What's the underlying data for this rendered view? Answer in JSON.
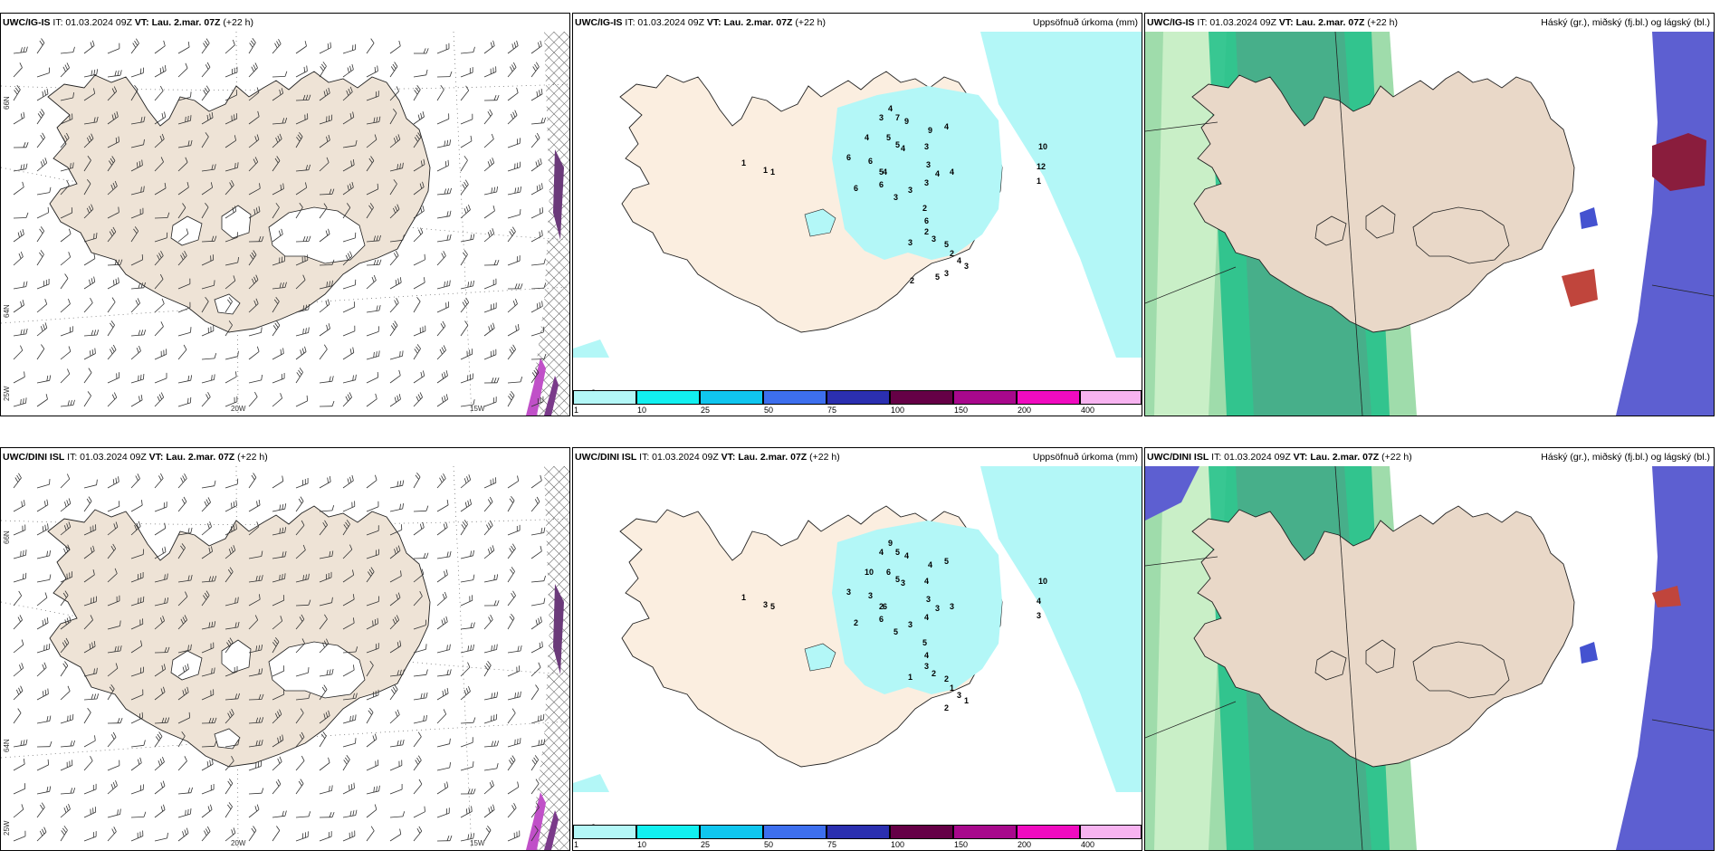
{
  "colors": {
    "land": "#eee3d6",
    "precip_light": "#b3f7f7",
    "model_green": "#1fbf88",
    "high_cloud_blue": "#5d5fd1"
  },
  "top": {
    "wind": {
      "model": "UWC/IG-IS",
      "it": "IT: 01.03.2024 09Z",
      "vt": "VT: Lau. 2.mar. 07Z",
      "lead": "(+22 h)"
    },
    "precip": {
      "model": "UWC/IG-IS",
      "it": "IT: 01.03.2024 09Z",
      "vt": "VT: Lau. 2.mar. 07Z",
      "lead": "(+22 h)",
      "title": "Uppsöfnuð úrkoma (mm)"
    },
    "cloud": {
      "model": "UWC/IG-IS",
      "it": "IT: 01.03.2024 09Z",
      "vt": "VT: Lau. 2.mar. 07Z",
      "lead": "(+22 h)",
      "title": "Háský (gr.), miðský (fj.bl.) og lágský (bl.)"
    }
  },
  "bottom": {
    "wind": {
      "model": "UWC/DINI ISL",
      "it": "IT: 01.03.2024 09Z",
      "vt": "VT: Lau. 2.mar. 07Z",
      "lead": "(+22 h)"
    },
    "precip": {
      "model": "UWC/DINI ISL",
      "it": "IT: 01.03.2024 09Z",
      "vt": "VT: Lau. 2.mar. 07Z",
      "lead": "(+22 h)",
      "title": "Uppsöfnuð úrkoma (mm)"
    },
    "cloud": {
      "model": "UWC/DINI ISL",
      "it": "IT: 01.03.2024 09Z",
      "vt": "VT: Lau. 2.mar. 07Z",
      "lead": "(+22 h)",
      "title": "Háský (gr.), miðský (fj.bl.) og lágský (bl.)"
    }
  },
  "axis_labels": {
    "lon_20w": "20W",
    "lon_15w": "15W",
    "lat_66n": "66N",
    "lat_64n": "64N",
    "lon_25w": "25W"
  },
  "legend": {
    "ticks": [
      "1",
      "10",
      "25",
      "50",
      "75",
      "100",
      "150",
      "200",
      "400"
    ],
    "colors": [
      "#b3f7f7",
      "#12f0f0",
      "#10c6ef",
      "#3d6fee",
      "#2b2fb0",
      "#650046",
      "#a8088c",
      "#f00bc0",
      "#f7b3f0"
    ]
  },
  "precip_labels_top": [
    "3",
    "1",
    "1",
    "1",
    "7",
    "9",
    "4",
    "5",
    "3",
    "4",
    "9",
    "4",
    "6",
    "3",
    "5",
    "3",
    "10",
    "5",
    "4",
    "3",
    "6",
    "4",
    "3",
    "12",
    "1",
    "6",
    "4",
    "4",
    "6",
    "3",
    "6",
    "2",
    "2",
    "3",
    "3",
    "5",
    "2",
    "4",
    "3",
    "3",
    "5",
    "2"
  ],
  "precip_labels_bottom": [
    "2",
    "1",
    "5",
    "3",
    "5",
    "4",
    "9",
    "6",
    "4",
    "3",
    "4",
    "10",
    "3",
    "3",
    "5",
    "4",
    "10",
    "2",
    "5",
    "4",
    "6",
    "3",
    "3",
    "4",
    "3",
    "3",
    "6",
    "3",
    "2",
    "5",
    "4",
    "5",
    "3",
    "2",
    "1",
    "2",
    "1",
    "3",
    "1",
    "2"
  ]
}
